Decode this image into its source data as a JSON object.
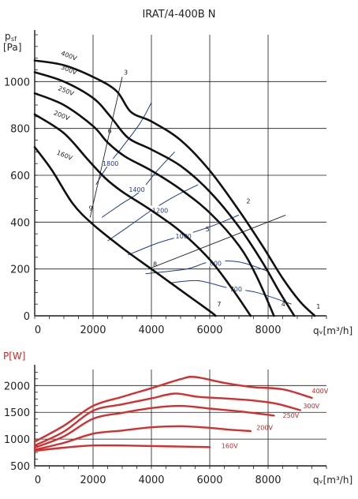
{
  "chart_data": [
    {
      "type": "line",
      "title": "IRAT/4-400B N",
      "ylabel_main": "p",
      "ylabel_sub": "sf",
      "yunit": "[Pa]",
      "xlabel": "qᵥ[m³/h]",
      "xlim": [
        0,
        10000
      ],
      "ylim": [
        0,
        1200
      ],
      "xticks": [
        "0",
        "2000",
        "4000",
        "6000",
        "8000"
      ],
      "yticks": [
        "0",
        "200",
        "400",
        "600",
        "800",
        "1000"
      ],
      "ytick_values": [
        0,
        200,
        400,
        600,
        800,
        1000
      ],
      "xtick_values": [
        0,
        2000,
        4000,
        6000,
        8000
      ],
      "grid": true,
      "series": [
        {
          "name": "400V",
          "x": [
            0,
            1000,
            2000,
            2800,
            3300,
            4000,
            5000,
            6000,
            7000,
            7800,
            8500,
            9100,
            9600
          ],
          "y": [
            1090,
            1070,
            1020,
            960,
            870,
            830,
            750,
            620,
            450,
            300,
            160,
            60,
            0
          ],
          "label_pos": [
            400,
            1115
          ]
        },
        {
          "name": "300V",
          "x": [
            0,
            1000,
            2000,
            2600,
            3200,
            4000,
            5000,
            6000,
            7000,
            7800,
            8400,
            8900
          ],
          "y": [
            1040,
            1000,
            930,
            850,
            760,
            710,
            640,
            530,
            380,
            230,
            100,
            0
          ],
          "label_pos": [
            400,
            1055
          ]
        },
        {
          "name": "250V",
          "x": [
            0,
            1000,
            2000,
            2500,
            3100,
            4000,
            5000,
            6000,
            7000,
            7600,
            8200
          ],
          "y": [
            950,
            900,
            810,
            740,
            680,
            620,
            540,
            440,
            300,
            170,
            0
          ],
          "label_pos": [
            300,
            965
          ]
        },
        {
          "name": "200V",
          "x": [
            0,
            1000,
            1800,
            2400,
            3000,
            4000,
            5000,
            6000,
            6800,
            7400
          ],
          "y": [
            860,
            780,
            670,
            590,
            530,
            450,
            360,
            240,
            110,
            0
          ],
          "label_pos": [
            150,
            860
          ]
        },
        {
          "name": "160V",
          "x": [
            0,
            600,
            1300,
            2000,
            3000,
            4000,
            5000,
            6000,
            6200
          ],
          "y": [
            720,
            620,
            480,
            390,
            290,
            200,
            110,
            20,
            0
          ],
          "label_pos": [
            250,
            690
          ]
        }
      ],
      "rpm_curves": [
        {
          "label": "1800",
          "x": [
            2100,
            2500,
            3000,
            3600,
            4000
          ],
          "y": [
            560,
            640,
            720,
            820,
            910
          ],
          "label_pos": [
            2600,
            650
          ]
        },
        {
          "label": "1400",
          "x": [
            2300,
            3000,
            3600,
            4200,
            4800
          ],
          "y": [
            420,
            480,
            530,
            620,
            700
          ],
          "label_pos": [
            3500,
            540
          ]
        },
        {
          "label": "1200",
          "x": [
            2500,
            3200,
            4000,
            4800,
            5600
          ],
          "y": [
            320,
            380,
            450,
            510,
            560
          ],
          "label_pos": [
            4300,
            450
          ]
        },
        {
          "label": "1000",
          "x": [
            3200,
            4200,
            5000,
            6000,
            7000
          ],
          "y": [
            260,
            310,
            340,
            380,
            430
          ],
          "label_pos": [
            5100,
            340
          ]
        },
        {
          "label": "800",
          "x": [
            3800,
            5200,
            6000,
            7000,
            8000
          ],
          "y": [
            180,
            200,
            230,
            230,
            190
          ],
          "label_pos": [
            6200,
            225
          ]
        },
        {
          "label": "700",
          "x": [
            4600,
            5600,
            6600,
            7600,
            8800
          ],
          "y": [
            140,
            150,
            120,
            100,
            50
          ],
          "label_pos": [
            6900,
            115
          ]
        }
      ],
      "system_lines": [
        {
          "x": [
            1900,
            3000
          ],
          "y": [
            420,
            1020
          ]
        },
        {
          "x": [
            3900,
            8600
          ],
          "y": [
            200,
            430
          ]
        }
      ],
      "points": [
        {
          "label": "1",
          "x": 9600,
          "y": 20
        },
        {
          "label": "2",
          "x": 7200,
          "y": 470
        },
        {
          "label": "3",
          "x": 3000,
          "y": 1020
        },
        {
          "label": "4",
          "x": 8400,
          "y": 30
        },
        {
          "label": "5",
          "x": 5800,
          "y": 350
        },
        {
          "label": "6",
          "x": 2450,
          "y": 770
        },
        {
          "label": "7",
          "x": 6200,
          "y": 30
        },
        {
          "label": "8",
          "x": 4000,
          "y": 200
        },
        {
          "label": "9",
          "x": 1800,
          "y": 440
        }
      ]
    },
    {
      "type": "line",
      "ylabel": "P[W]",
      "xlabel": "qᵥ[m³/h]",
      "xlim": [
        0,
        10000
      ],
      "ylim": [
        500,
        2300
      ],
      "xticks": [
        "0",
        "2000",
        "4000",
        "6000",
        "8000"
      ],
      "yticks": [
        "500",
        "1000",
        "1500",
        "2000"
      ],
      "ytick_values": [
        500,
        1000,
        1500,
        2000
      ],
      "xtick_values": [
        0,
        2000,
        4000,
        6000,
        8000
      ],
      "grid": true,
      "series": [
        {
          "name": "400V",
          "x": [
            0,
            1000,
            2000,
            3000,
            4000,
            5000,
            5500,
            6500,
            7500,
            8500,
            9500
          ],
          "y": [
            950,
            1250,
            1620,
            1790,
            1950,
            2120,
            2160,
            2050,
            1970,
            1930,
            1770
          ],
          "label_pos": [
            9500,
            1860
          ]
        },
        {
          "name": "300V",
          "x": [
            0,
            1000,
            2000,
            3000,
            4000,
            4800,
            5600,
            6500,
            7500,
            8300,
            9100
          ],
          "y": [
            880,
            1140,
            1530,
            1650,
            1760,
            1850,
            1790,
            1760,
            1720,
            1660,
            1540
          ],
          "label_pos": [
            9200,
            1580
          ]
        },
        {
          "name": "250V",
          "x": [
            0,
            1000,
            2000,
            3000,
            4000,
            5000,
            6000,
            7000,
            8200
          ],
          "y": [
            840,
            1050,
            1380,
            1490,
            1580,
            1620,
            1570,
            1520,
            1440
          ],
          "label_pos": [
            8500,
            1400
          ]
        },
        {
          "name": "200V",
          "x": [
            0,
            1000,
            2000,
            3000,
            4000,
            5000,
            6000,
            6800,
            7400
          ],
          "y": [
            800,
            930,
            1100,
            1160,
            1220,
            1240,
            1210,
            1170,
            1150
          ],
          "label_pos": [
            7600,
            1170
          ]
        },
        {
          "name": "160V",
          "x": [
            0,
            1000,
            2000,
            3000,
            4000,
            5000,
            6000
          ],
          "y": [
            780,
            840,
            880,
            880,
            870,
            860,
            850
          ],
          "label_pos": [
            6400,
            830
          ]
        }
      ]
    }
  ]
}
